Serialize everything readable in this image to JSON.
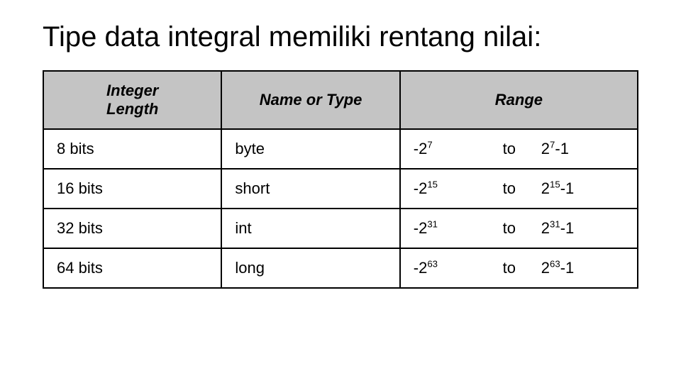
{
  "title": "Tipe data integral memiliki rentang nilai:",
  "table": {
    "headers": {
      "col1": "Integer Length",
      "col2": "Name or Type",
      "col3": "Range"
    },
    "header_bg": "#c4c4c4",
    "border_color": "#000000",
    "font_family": "Verdana",
    "cell_fontsize": 22,
    "header_fontsize": 22,
    "rows": [
      {
        "length": "8 bits",
        "type": "byte",
        "range": {
          "neg_base": "-2",
          "neg_exp": "7",
          "to": "to",
          "pos_base": "2",
          "pos_exp": "7",
          "suffix": "-1"
        }
      },
      {
        "length": "16 bits",
        "type": "short",
        "range": {
          "neg_base": "-2",
          "neg_exp": "15",
          "to": "to",
          "pos_base": "2",
          "pos_exp": "15",
          "suffix": "-1"
        }
      },
      {
        "length": "32 bits",
        "type": "int",
        "range": {
          "neg_base": "-2",
          "neg_exp": "31",
          "to": "to",
          "pos_base": "2",
          "pos_exp": "31",
          "suffix": "-1"
        }
      },
      {
        "length": "64 bits",
        "type": "long",
        "range": {
          "neg_base": "-2",
          "neg_exp": "63",
          "to": "to",
          "pos_base": "2",
          "pos_exp": "63",
          "suffix": "-1"
        }
      }
    ]
  },
  "colors": {
    "background": "#ffffff",
    "text": "#000000"
  }
}
